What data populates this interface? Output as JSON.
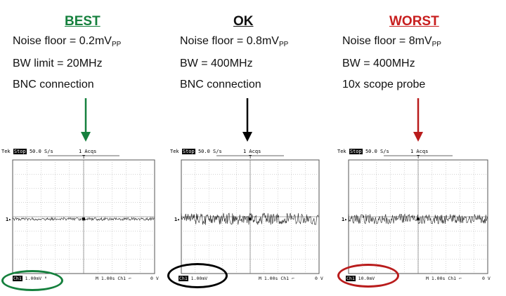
{
  "columns": [
    {
      "heading": "BEST",
      "heading_color": "#15803d",
      "noise_label": "Noise floor = 0.2mV",
      "noise_sub": "PP",
      "bw": "BW limit = 20MHz",
      "connection": "BNC connection",
      "arrow_color": "#15803d",
      "scope": {
        "brand": "Tek",
        "state": "Stop",
        "rate": "50.0 S/s",
        "acqs": "1 Acqs",
        "ch_marker": "1",
        "ch_label": "Ch1",
        "volts": "1.00mV",
        "bw_icon": "bw-limit-icon",
        "bw_glyph": "ᴮ",
        "timebase": "M 1.00s",
        "trig_src": "Ch1",
        "trig_icon": "rising-edge-icon",
        "trig_level": "0 V",
        "noise_amplitude": 0.15
      },
      "ring_color": "#15803d"
    },
    {
      "heading": "OK",
      "heading_color": "#111111",
      "noise_label": "Noise floor = 0.8mV",
      "noise_sub": "PP",
      "bw": "BW = 400MHz",
      "connection": "BNC connection",
      "arrow_color": "#000000",
      "scope": {
        "brand": "Tek",
        "state": "Stop",
        "rate": "50.0 S/s",
        "acqs": "1 Acqs",
        "ch_marker": "1",
        "ch_label": "Ch1",
        "volts": "1.00mV",
        "timebase": "M 1.00s",
        "trig_src": "Ch1",
        "trig_icon": "rising-edge-icon",
        "trig_level": "0 V",
        "noise_amplitude": 0.6
      },
      "ring_color": "#000000"
    },
    {
      "heading": "WORST",
      "heading_color": "#c81e1e",
      "noise_label": "Noise floor = 8mV",
      "noise_sub": "PP",
      "bw": "BW = 400MHz",
      "connection": "10x scope probe",
      "arrow_color": "#b91c1c",
      "scope": {
        "brand": "Tek",
        "state": "Stop",
        "rate": "50.0 S/s",
        "acqs": "1 Acqs",
        "ch_marker": "1",
        "ch_label": "Ch1",
        "volts": "10.0mV",
        "timebase": "M 1.00s",
        "trig_src": "Ch1",
        "trig_icon": "rising-edge-icon",
        "trig_level": "0 V",
        "noise_amplitude": 0.5
      },
      "ring_color": "#b91c1c"
    }
  ]
}
